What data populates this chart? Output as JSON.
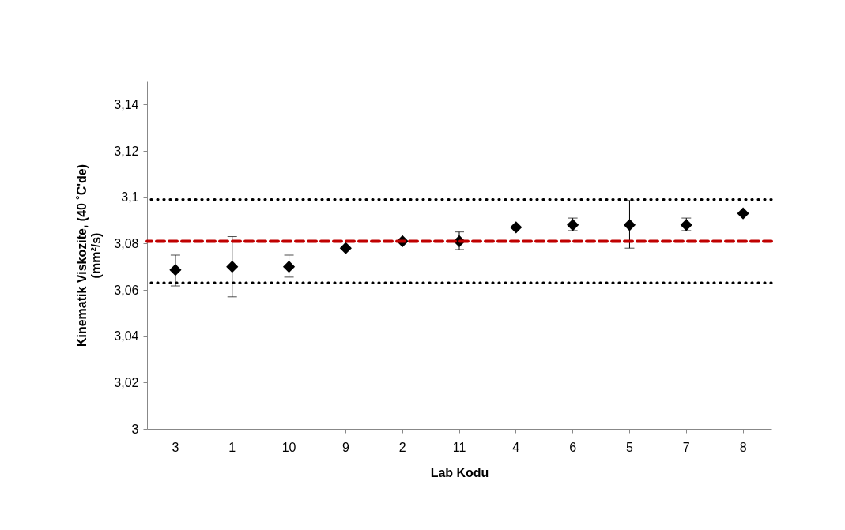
{
  "chart_data": {
    "type": "scatter",
    "xlabel": "Lab Kodu",
    "ylabel": "Kinematik Viskozite, (40 ˚C'de)\n(mm²/s)",
    "categories": [
      "3",
      "1",
      "10",
      "9",
      "2",
      "11",
      "4",
      "6",
      "5",
      "7",
      "8"
    ],
    "series": [
      {
        "color": "#000000",
        "values": [
          3.0686,
          3.07,
          3.07,
          3.078,
          3.081,
          3.081,
          3.087,
          3.088,
          3.088,
          3.088,
          3.093
        ],
        "errors": [
          [
            3.0617,
            3.075
          ],
          [
            3.057,
            3.083
          ],
          [
            3.0655,
            3.075
          ],
          null,
          null,
          [
            3.0774,
            3.085
          ],
          null,
          [
            3.0856,
            3.091
          ],
          [
            3.078,
            3.0986
          ],
          [
            3.0856,
            3.091
          ],
          null
        ]
      }
    ],
    "marker": "diamond",
    "grid": false,
    "ylim": [
      3,
      3.15
    ],
    "yticks": [
      3,
      {
        "value": 3.02,
        "label": "3,02"
      },
      {
        "value": 3.04,
        "label": "3,04"
      },
      {
        "value": 3.06,
        "label": "3,06"
      },
      {
        "value": 3.08,
        "label": "3,08"
      },
      {
        "value": 3.1,
        "label": "3,1"
      },
      {
        "value": 3.12,
        "label": "3,12"
      },
      {
        "value": 3.14,
        "label": "3,14"
      }
    ],
    "ref_lines": [
      {
        "axis": "y",
        "value": 3.099,
        "color": "#000000",
        "line_style": "dotted"
      },
      {
        "axis": "y",
        "value": 3.081,
        "color": "#c00000",
        "line_style": "dashed"
      },
      {
        "axis": "y",
        "value": 3.063,
        "color": "#000000",
        "line_style": "dotted"
      }
    ]
  }
}
